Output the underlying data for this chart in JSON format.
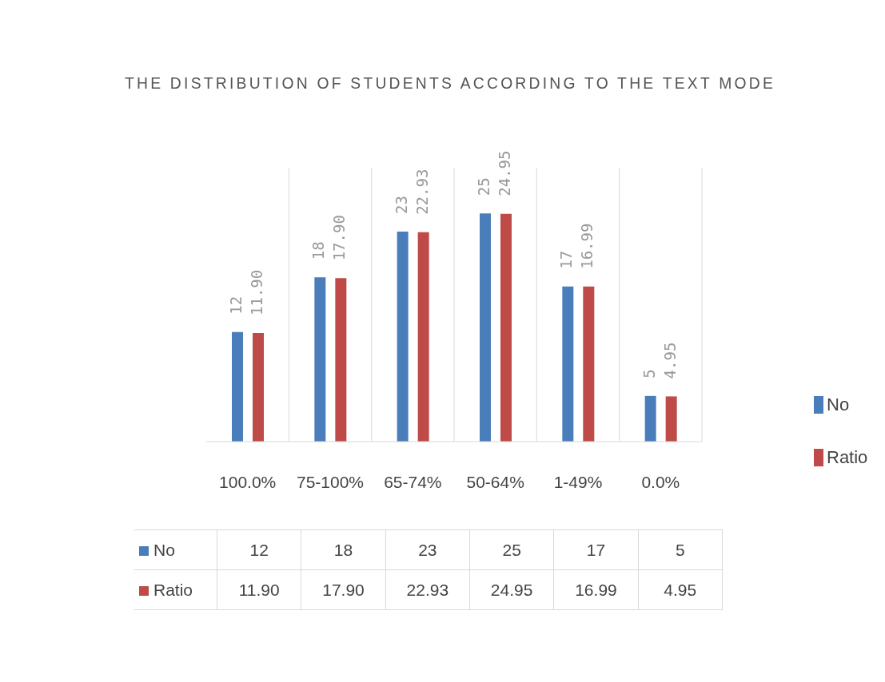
{
  "chart_data": {
    "type": "bar",
    "title": "THE DISTRIBUTION OF STUDENTS ACCORDING TO THE TEXT MODE",
    "categories": [
      "100.0%",
      "75-100%",
      "65-74%",
      "50-64%",
      "1-49%",
      "0.0%"
    ],
    "series": [
      {
        "name": "No",
        "color": "#4a7ebb",
        "values": [
          12,
          18,
          23,
          25,
          17,
          5
        ],
        "value_labels": [
          "12",
          "18",
          "23",
          "25",
          "17",
          "5"
        ]
      },
      {
        "name": "Ratio",
        "color": "#be4b48",
        "values": [
          11.9,
          17.9,
          22.93,
          24.95,
          16.99,
          4.95
        ],
        "value_labels": [
          "11.90",
          "17.90",
          "22.93",
          "24.95",
          "16.99",
          "4.95"
        ]
      }
    ],
    "grid": "x",
    "legend": "right"
  }
}
